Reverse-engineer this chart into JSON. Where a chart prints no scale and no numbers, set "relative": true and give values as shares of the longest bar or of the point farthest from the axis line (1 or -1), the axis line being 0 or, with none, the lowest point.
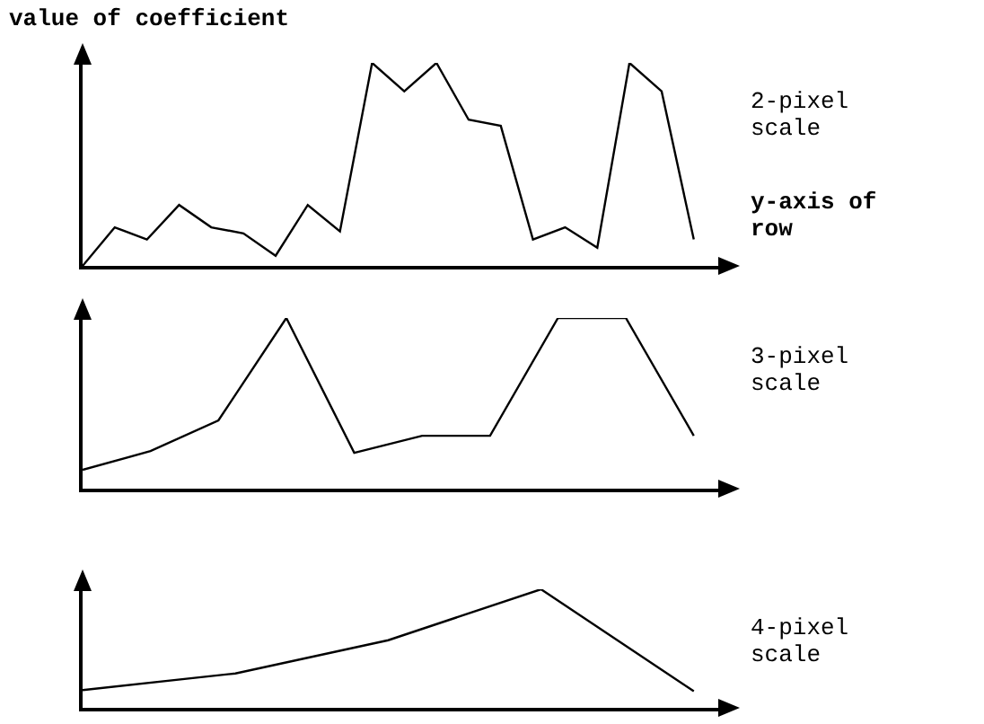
{
  "chart_data": [
    {
      "type": "line",
      "title": "value of coefficient",
      "xlabel": "y-axis of row",
      "relative": true,
      "marker": "none",
      "color": "#000000",
      "categories": [
        null,
        null,
        null,
        null,
        null,
        null,
        null,
        null,
        null,
        null,
        null,
        null,
        null,
        null,
        null,
        null,
        null,
        null,
        null,
        null
      ],
      "values": [
        0,
        0.19,
        0.13,
        0.3,
        0.19,
        0.16,
        0.05,
        0.3,
        0.17,
        1,
        0.86,
        1,
        0.72,
        0.69,
        0.13,
        0.19,
        0.09,
        1,
        0.86,
        0.13
      ],
      "annotations": [
        "2-pixel scale"
      ]
    },
    {
      "type": "line",
      "relative": true,
      "marker": "none",
      "color": "#000000",
      "categories": [
        null,
        null,
        null,
        null,
        null,
        null,
        null,
        null,
        null,
        null
      ],
      "values": [
        0.11,
        0.22,
        0.4,
        1,
        0.21,
        0.31,
        0.31,
        1,
        1,
        0.31
      ],
      "annotations": [
        "3-pixel scale"
      ]
    },
    {
      "type": "line",
      "relative": true,
      "marker": "none",
      "color": "#000000",
      "categories": [
        null,
        null,
        null,
        null,
        null
      ],
      "values": [
        0.15,
        0.29,
        0.57,
        1,
        0.14
      ],
      "annotations": [
        "4-pixel scale"
      ]
    }
  ]
}
